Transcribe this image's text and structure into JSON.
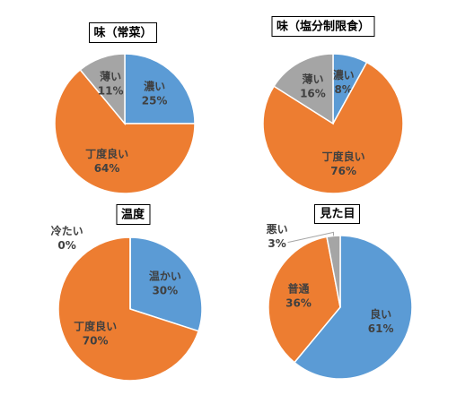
{
  "chart_data": [
    {
      "type": "pie",
      "title": "味（常菜）",
      "categories": [
        "濃い",
        "丁度良い",
        "薄い"
      ],
      "values": [
        25,
        64,
        11
      ],
      "value_labels": [
        "25%",
        "64%",
        "11%"
      ],
      "colors": [
        "#5b9bd5",
        "#ed7d31",
        "#a5a5a5"
      ]
    },
    {
      "type": "pie",
      "title": "味（塩分制限食）",
      "categories": [
        "濃い",
        "丁度良い",
        "薄い"
      ],
      "values": [
        8,
        76,
        16
      ],
      "value_labels": [
        "8%",
        "76%",
        "16%"
      ],
      "colors": [
        "#5b9bd5",
        "#ed7d31",
        "#a5a5a5"
      ]
    },
    {
      "type": "pie",
      "title": "温度",
      "categories": [
        "温かい",
        "丁度良い",
        "冷たい"
      ],
      "values": [
        30,
        70,
        0
      ],
      "value_labels": [
        "30%",
        "70%",
        "0%"
      ],
      "colors": [
        "#5b9bd5",
        "#ed7d31",
        "#a5a5a5"
      ]
    },
    {
      "type": "pie",
      "title": "見た目",
      "categories": [
        "良い",
        "普通",
        "悪い"
      ],
      "values": [
        61,
        36,
        3
      ],
      "value_labels": [
        "61%",
        "36%",
        "3%"
      ],
      "colors": [
        "#5b9bd5",
        "#ed7d31",
        "#a5a5a5"
      ]
    }
  ]
}
